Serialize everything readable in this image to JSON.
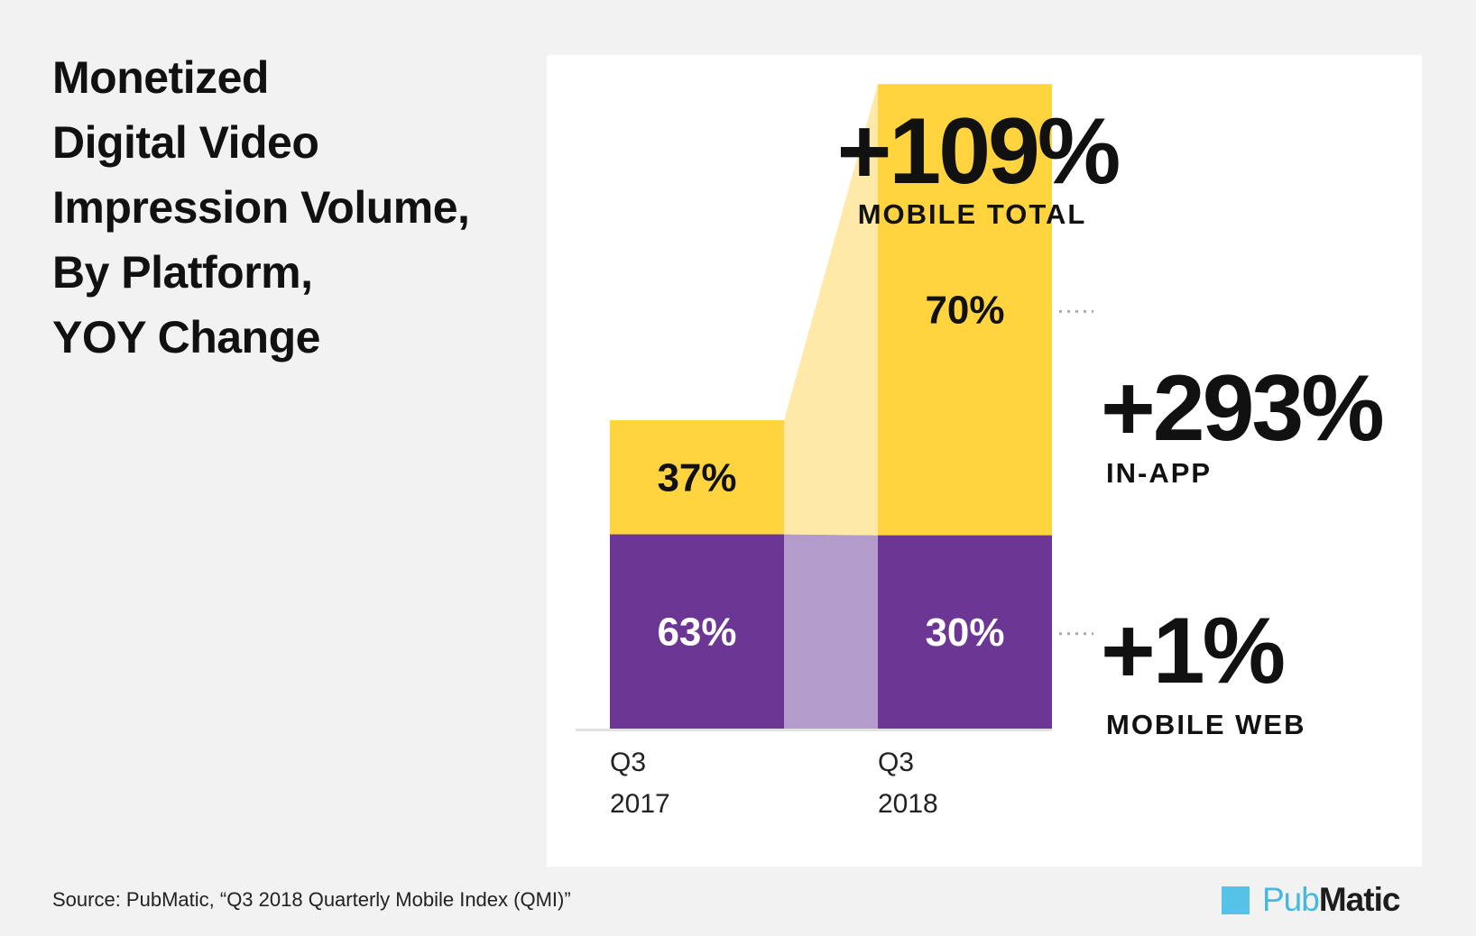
{
  "title_lines": [
    "Monetized",
    "Digital Video",
    "Impression Volume,",
    "By Platform,",
    "YOY Change"
  ],
  "source": "Source: PubMatic, “Q3 2018 Quarterly Mobile Index (QMI)”",
  "brand": {
    "mark_icon": "square-logo-icon",
    "part1": "Pub",
    "part2": "Matic"
  },
  "colors": {
    "in_app": "#ffd43f",
    "mobile_web": "#6c3794",
    "in_app_band": "#ffe9a8",
    "mobile_web_band": "#b39ccb"
  },
  "chart_data": {
    "type": "bar",
    "stacked": true,
    "categories": [
      {
        "line1": "Q3",
        "line2": "2017"
      },
      {
        "line1": "Q3",
        "line2": "2018"
      }
    ],
    "series": [
      {
        "name": "Mobile Web",
        "values": [
          63,
          30
        ],
        "labels": [
          "63%",
          "30%"
        ]
      },
      {
        "name": "In-App",
        "values": [
          37,
          70
        ],
        "labels": [
          "37%",
          "70%"
        ]
      }
    ],
    "relative_total_volume": [
      1,
      2.09
    ],
    "changes": [
      {
        "value": "+109%",
        "label": "MOBILE TOTAL"
      },
      {
        "value": "+293%",
        "label": "IN-APP"
      },
      {
        "value": "+1%",
        "label": "MOBILE WEB"
      }
    ]
  }
}
